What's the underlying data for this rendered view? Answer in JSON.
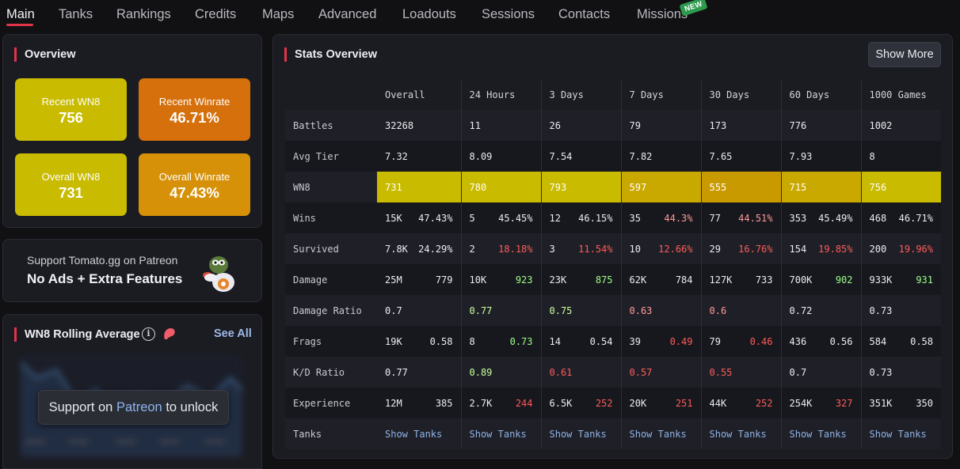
{
  "nav": {
    "tabs": [
      "Main",
      "Tanks",
      "Rankings",
      "Credits",
      "Maps",
      "Advanced",
      "Loadouts",
      "Sessions",
      "Contacts",
      "Missions"
    ],
    "new_badge": "NEW"
  },
  "overview": {
    "title": "Overview",
    "tiles": [
      {
        "label": "Recent WN8",
        "value": "756",
        "color": "#c9bb00"
      },
      {
        "label": "Recent Winrate",
        "value": "46.71%",
        "color": "#d5700c"
      },
      {
        "label": "Overall WN8",
        "value": "731",
        "color": "#c9bb00"
      },
      {
        "label": "Overall Winrate",
        "value": "47.43%",
        "color": "#d69108"
      }
    ]
  },
  "patreon": {
    "line1": "Support Tomato.gg on Patreon",
    "line2": "No Ads + Extra Features"
  },
  "rolling": {
    "title": "WN8 Rolling Average",
    "see_all": "See All",
    "unlock_prefix": "Support on ",
    "unlock_link": "Patreon",
    "unlock_suffix": " to unlock"
  },
  "stats": {
    "title": "Stats Overview",
    "show_more": "Show More",
    "columns": [
      "Overall",
      "24 Hours",
      "3 Days",
      "7 Days",
      "30 Days",
      "60 Days",
      "1000 Games"
    ],
    "rows": {
      "battles": {
        "label": "Battles",
        "values": [
          "32268",
          "11",
          "26",
          "79",
          "173",
          "776",
          "1002"
        ]
      },
      "avg_tier": {
        "label": "Avg Tier",
        "values": [
          "7.32",
          "8.09",
          "7.54",
          "7.82",
          "7.65",
          "7.93",
          "8"
        ]
      },
      "wn8": {
        "label": "WN8",
        "values": [
          "731",
          "780",
          "793",
          "597",
          "555",
          "715",
          "756"
        ],
        "colors": [
          "#c9bb00",
          "#c9bb00",
          "#c9bb00",
          "#c9a800",
          "#c99a00",
          "#c9a800",
          "#c9bb00"
        ]
      },
      "wins": {
        "label": "Wins",
        "counts": [
          "15K",
          "5",
          "12",
          "35",
          "77",
          "353",
          "468"
        ],
        "rates": [
          "47.43%",
          "45.45%",
          "46.15%",
          "44.3%",
          "44.51%",
          "45.49%",
          "46.71%"
        ]
      },
      "survived": {
        "label": "Survived",
        "counts": [
          "7.8K",
          "2",
          "3",
          "10",
          "29",
          "154",
          "200"
        ],
        "rates": [
          "24.29%",
          "18.18%",
          "11.54%",
          "12.66%",
          "16.76%",
          "19.85%",
          "19.96%"
        ]
      },
      "damage": {
        "label": "Damage",
        "totals": [
          "25M",
          "10K",
          "23K",
          "62K",
          "127K",
          "700K",
          "933K"
        ],
        "avgs": [
          "779",
          "923",
          "875",
          "784",
          "733",
          "902",
          "931"
        ]
      },
      "damage_ratio": {
        "label": "Damage Ratio",
        "values": [
          "0.7",
          "0.77",
          "0.75",
          "0.63",
          "0.6",
          "0.72",
          "0.73"
        ]
      },
      "frags": {
        "label": "Frags",
        "totals": [
          "19K",
          "8",
          "14",
          "39",
          "79",
          "436",
          "584"
        ],
        "avgs": [
          "0.58",
          "0.73",
          "0.54",
          "0.49",
          "0.46",
          "0.56",
          "0.58"
        ]
      },
      "kd_ratio": {
        "label": "K/D Ratio",
        "values": [
          "0.77",
          "0.89",
          "0.61",
          "0.57",
          "0.55",
          "0.7",
          "0.73"
        ]
      },
      "experience": {
        "label": "Experience",
        "totals": [
          "12M",
          "2.7K",
          "6.5K",
          "20K",
          "44K",
          "254K",
          "351K"
        ],
        "avgs": [
          "385",
          "244",
          "252",
          "251",
          "252",
          "327",
          "350"
        ]
      },
      "tanks": {
        "label": "Tanks",
        "link": "Show Tanks"
      }
    }
  },
  "accent_color": "#e0344a"
}
